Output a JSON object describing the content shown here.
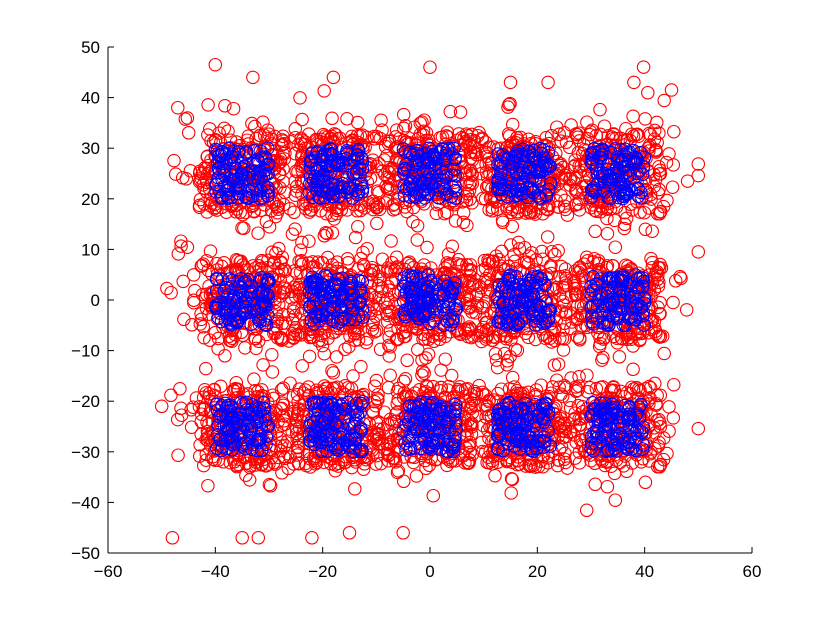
{
  "chart_data": {
    "type": "scatter",
    "title": "",
    "xlabel": "",
    "ylabel": "",
    "xlim": [
      -60,
      60
    ],
    "ylim": [
      -50,
      50
    ],
    "grid": false,
    "legend": "none",
    "x_ticks": [
      -60,
      -40,
      -20,
      0,
      20,
      40,
      60
    ],
    "y_ticks": [
      -50,
      -40,
      -30,
      -20,
      -10,
      0,
      10,
      20,
      30,
      40,
      50
    ],
    "x_tick_labels": [
      "−60",
      "−40",
      "−20",
      "0",
      "20",
      "40",
      "60"
    ],
    "y_tick_labels": [
      "−50",
      "−40",
      "−30",
      "−20",
      "−10",
      "0",
      "10",
      "20",
      "30",
      "40",
      "50"
    ],
    "marker": "open-circle",
    "cluster_centers_x": [
      -35,
      -17.5,
      0,
      17.5,
      35
    ],
    "cluster_centers_y": [
      25,
      0,
      -25
    ],
    "series": [
      {
        "color": "#ff0000",
        "description_spread": "wide",
        "half_width_x": 10,
        "half_width_y": 10,
        "points_per_cluster": 260
      },
      {
        "color": "#0000ff",
        "description_spread": "tight",
        "half_width_x": 5,
        "half_width_y": 5,
        "points_per_cluster": 110
      }
    ],
    "outliers": [
      [
        -48,
        -47
      ],
      [
        -40,
        46.5
      ],
      [
        -32,
        -47
      ],
      [
        -35,
        -47
      ],
      [
        -22,
        -47
      ],
      [
        -15,
        -46
      ],
      [
        -5,
        -46
      ],
      [
        0,
        46
      ],
      [
        15,
        43
      ],
      [
        38,
        43
      ],
      [
        45,
        41.5
      ],
      [
        48,
        23.5
      ],
      [
        50,
        9.5
      ],
      [
        -50,
        -21
      ],
      [
        -47,
        38
      ],
      [
        -18,
        44
      ],
      [
        22,
        43
      ],
      [
        -33,
        44
      ]
    ]
  },
  "colors": {
    "axes": "#000000",
    "background": "#ffffff"
  }
}
